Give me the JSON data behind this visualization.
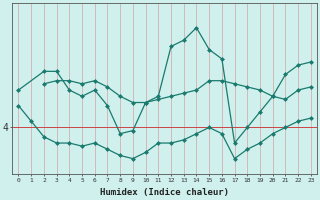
{
  "xlabel": "Humidex (Indice chaleur)",
  "bg_color": "#cff0ec",
  "line_color": "#1a7a6e",
  "grid_color": "#d4b0b0",
  "xlim": [
    -0.5,
    23.5
  ],
  "ylim": [
    2.5,
    8.0
  ],
  "yticks": [
    4
  ],
  "xticks": [
    0,
    1,
    2,
    3,
    4,
    5,
    6,
    7,
    8,
    9,
    10,
    11,
    12,
    13,
    14,
    15,
    16,
    17,
    18,
    19,
    20,
    21,
    22,
    23
  ],
  "hline_y": 4.0,
  "hline_color": "#cc4444",
  "line1_x": [
    0,
    1,
    2,
    3,
    4,
    5,
    6,
    7,
    8,
    9,
    10,
    11,
    12,
    13,
    14,
    15,
    16,
    17,
    18,
    19,
    20,
    21,
    22,
    23
  ],
  "line1_y": [
    4.7,
    4.2,
    3.7,
    3.5,
    3.5,
    3.4,
    3.5,
    3.3,
    3.1,
    3.0,
    3.2,
    3.5,
    3.5,
    3.6,
    3.8,
    4.0,
    3.8,
    3.0,
    3.3,
    3.5,
    3.8,
    4.0,
    4.2,
    4.3
  ],
  "line2_x": [
    2,
    3,
    4,
    5,
    6,
    7,
    8,
    9,
    10,
    11,
    12,
    13,
    14,
    15,
    16,
    17,
    18,
    19,
    20,
    21,
    22,
    23
  ],
  "line2_y": [
    5.4,
    5.5,
    5.5,
    5.4,
    5.5,
    5.3,
    5.0,
    4.8,
    4.8,
    4.9,
    5.0,
    5.1,
    5.2,
    5.5,
    5.5,
    5.4,
    5.3,
    5.2,
    5.0,
    4.9,
    5.2,
    5.3
  ],
  "line3_x": [
    0,
    2,
    3,
    4,
    5,
    6,
    7,
    8,
    9,
    10,
    11,
    12,
    13,
    14,
    15,
    16,
    17,
    18,
    19,
    20,
    21,
    22,
    23
  ],
  "line3_y": [
    5.2,
    5.8,
    5.8,
    5.2,
    5.0,
    5.2,
    4.7,
    3.8,
    3.9,
    4.8,
    5.0,
    6.6,
    6.8,
    7.2,
    6.5,
    6.2,
    3.5,
    4.0,
    4.5,
    5.0,
    5.7,
    6.0,
    6.1
  ]
}
